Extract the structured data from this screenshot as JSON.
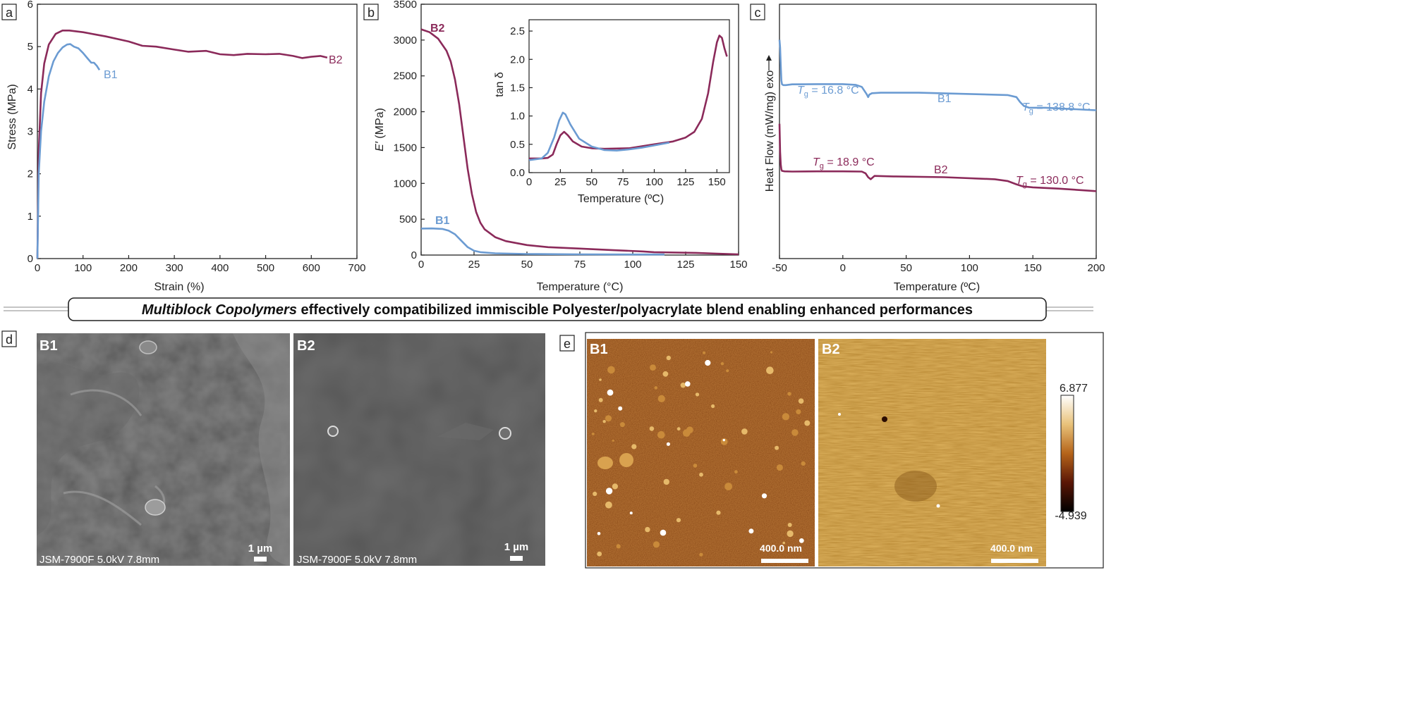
{
  "banner": {
    "emph": "Multiblock Copolymers",
    "rest": " effectively compatibilized immiscible Polyester/polyacrylate blend enabling enhanced performances"
  },
  "colors": {
    "B1": "#6b9bd2",
    "B2": "#8b2a5a",
    "axis": "#222222"
  },
  "chart_data": [
    {
      "panel": "a",
      "type": "line",
      "xlabel": "Strain (%)",
      "ylabel": "Stress (MPa)",
      "xlim": [
        0,
        700
      ],
      "ylim": [
        0,
        6
      ],
      "xticks": [
        0,
        100,
        200,
        300,
        400,
        500,
        600,
        700
      ],
      "yticks": [
        0,
        1,
        2,
        3,
        4,
        5,
        6
      ],
      "series": [
        {
          "name": "B1",
          "x": [
            0,
            3,
            8,
            15,
            25,
            35,
            45,
            55,
            65,
            72,
            80,
            90,
            100,
            110,
            118,
            124,
            130,
            136
          ],
          "y": [
            0,
            2.0,
            3.0,
            3.7,
            4.3,
            4.65,
            4.85,
            4.98,
            5.05,
            5.06,
            5.0,
            4.96,
            4.85,
            4.72,
            4.62,
            4.62,
            4.55,
            4.45
          ]
        },
        {
          "name": "B2",
          "x": [
            0,
            3,
            8,
            15,
            25,
            40,
            55,
            70,
            100,
            130,
            150,
            200,
            230,
            260,
            300,
            330,
            370,
            400,
            430,
            460,
            500,
            530,
            560,
            580,
            600,
            620,
            635
          ],
          "y": [
            0,
            2.5,
            3.9,
            4.6,
            5.05,
            5.3,
            5.38,
            5.38,
            5.34,
            5.28,
            5.24,
            5.12,
            5.02,
            5.0,
            4.93,
            4.88,
            4.9,
            4.82,
            4.8,
            4.83,
            4.82,
            4.83,
            4.78,
            4.73,
            4.76,
            4.78,
            4.74
          ]
        }
      ],
      "labels": {
        "B1": "B1",
        "B2": "B2"
      }
    },
    {
      "panel": "b",
      "type": "line",
      "xlabel": "Temperature (°C)",
      "ylabel_italic": "E′",
      "ylabel_rest": " (MPa)",
      "xlim": [
        0,
        150
      ],
      "ylim": [
        0,
        3500
      ],
      "xticks": [
        0,
        25,
        50,
        75,
        100,
        125,
        150
      ],
      "yticks": [
        0,
        500,
        1000,
        1500,
        2000,
        2500,
        3000,
        3500
      ],
      "series": [
        {
          "name": "B1",
          "x": [
            0,
            5,
            10,
            13,
            16,
            19,
            22,
            25,
            28,
            35,
            50,
            75,
            100,
            115
          ],
          "y": [
            370,
            372,
            365,
            340,
            290,
            200,
            110,
            60,
            40,
            25,
            15,
            10,
            8,
            8
          ]
        },
        {
          "name": "B2",
          "x": [
            0,
            4,
            8,
            12,
            14,
            16,
            18,
            20,
            22,
            24,
            26,
            28,
            30,
            35,
            40,
            50,
            60,
            75,
            90,
            105,
            110,
            120,
            130,
            140,
            150
          ],
          "y": [
            3150,
            3110,
            3020,
            2850,
            2700,
            2450,
            2100,
            1650,
            1200,
            850,
            600,
            450,
            360,
            250,
            195,
            140,
            110,
            90,
            70,
            50,
            40,
            35,
            30,
            20,
            10
          ]
        }
      ],
      "labels": {
        "B1": "B1",
        "B2": "B2"
      },
      "inset": {
        "xlabel": "Temperature (ºC)",
        "ylabel": "tan δ",
        "xlim": [
          0,
          160
        ],
        "ylim": [
          0,
          2.7
        ],
        "xticks": [
          0,
          25,
          50,
          75,
          100,
          125,
          150
        ],
        "yticks": [
          0.0,
          0.5,
          1.0,
          1.5,
          2.0,
          2.5
        ],
        "series": [
          {
            "name": "B1",
            "x": [
              0,
              10,
              15,
              20,
              24,
              27,
              29,
              33,
              40,
              50,
              60,
              70,
              80,
              90,
              100,
              112
            ],
            "y": [
              0.22,
              0.25,
              0.35,
              0.62,
              0.92,
              1.06,
              1.03,
              0.85,
              0.6,
              0.46,
              0.4,
              0.39,
              0.41,
              0.44,
              0.48,
              0.53
            ]
          },
          {
            "name": "B2",
            "x": [
              0,
              10,
              15,
              19,
              22,
              25,
              28,
              31,
              35,
              42,
              50,
              60,
              80,
              100,
              115,
              125,
              132,
              138,
              143,
              147,
              150,
              152,
              154,
              156,
              158
            ],
            "y": [
              0.25,
              0.25,
              0.26,
              0.32,
              0.5,
              0.66,
              0.72,
              0.66,
              0.55,
              0.46,
              0.43,
              0.42,
              0.43,
              0.5,
              0.55,
              0.62,
              0.72,
              0.95,
              1.4,
              1.95,
              2.3,
              2.42,
              2.38,
              2.2,
              2.05
            ]
          }
        ]
      }
    },
    {
      "panel": "c",
      "type": "line",
      "xlabel": "Temperature (ºC)",
      "ylabel": "Heat Flow (mW/mg) exo",
      "xlim": [
        -50,
        200
      ],
      "xticks": [
        -50,
        0,
        50,
        100,
        150,
        200
      ],
      "tick_labels": [
        "-50",
        "0",
        "50",
        "100",
        "150",
        "200"
      ],
      "series": [
        {
          "name": "B1",
          "x": [
            -50,
            -49.5,
            -49,
            -48.5,
            -48,
            -47,
            -45,
            -40,
            -20,
            0,
            10,
            15,
            17,
            19,
            20,
            21,
            23,
            30,
            60,
            100,
            130,
            137,
            140,
            143,
            147,
            160,
            180,
            200
          ],
          "y": [
            8.6,
            8.3,
            7.6,
            7.0,
            6.85,
            6.82,
            6.82,
            6.85,
            6.86,
            6.86,
            6.83,
            6.75,
            6.6,
            6.45,
            6.35,
            6.45,
            6.5,
            6.52,
            6.52,
            6.47,
            6.43,
            6.35,
            6.15,
            6.0,
            5.93,
            5.93,
            5.88,
            5.83
          ]
        },
        {
          "name": "B2",
          "x": [
            -50,
            -49.5,
            -49,
            -48.5,
            -48,
            -46,
            -40,
            -20,
            0,
            15,
            18,
            20,
            22,
            25,
            40,
            80,
            120,
            130,
            137,
            142,
            150,
            170,
            200
          ],
          "y": [
            5.3,
            4.2,
            3.7,
            3.5,
            3.45,
            3.43,
            3.42,
            3.43,
            3.43,
            3.42,
            3.35,
            3.2,
            3.12,
            3.25,
            3.23,
            3.2,
            3.12,
            3.05,
            2.92,
            2.84,
            2.8,
            2.75,
            2.65
          ]
        }
      ],
      "annotations": [
        {
          "series": "B1",
          "pre": "T",
          "sub": "g",
          "post": " = 16.8 °C"
        },
        {
          "series": "B1",
          "pre": "T",
          "sub": "g",
          "post": " = 138.8 °C"
        },
        {
          "series": "B2",
          "pre": "T",
          "sub": "g",
          "post": " = 18.9 °C"
        },
        {
          "series": "B2",
          "pre": "T",
          "sub": "g",
          "post": " = 130.0 °C"
        }
      ],
      "labels": {
        "B1": "B1",
        "B2": "B2"
      }
    }
  ],
  "panels": {
    "a": "a",
    "b": "b",
    "c": "c",
    "d": "d",
    "e": "e"
  },
  "sem": {
    "instrument": "JSM-7900F 5.0kV 7.8mm",
    "scale": "1 µm",
    "B1": "B1",
    "B2": "B2"
  },
  "afm": {
    "scale": "400.0 nm",
    "B1": "B1",
    "B2": "B2",
    "colorbar_max": "6.877",
    "colorbar_min": "-4.939"
  }
}
